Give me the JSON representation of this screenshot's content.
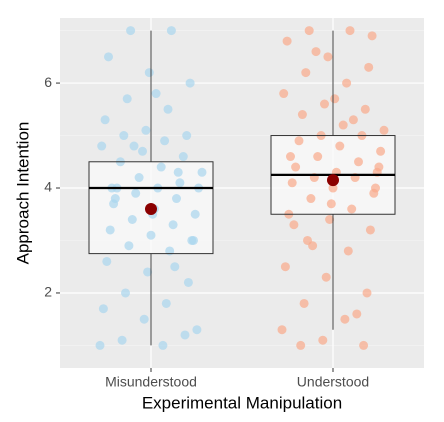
{
  "chart_data": {
    "type": "boxplot",
    "x_label": "Experimental Manipulation",
    "y_label": "Approach Intention",
    "categories": [
      "Misunderstood",
      "Understood"
    ],
    "boxes": [
      {
        "min": 1.0,
        "q1": 2.75,
        "median": 4.0,
        "q3": 4.5,
        "max": 7.0,
        "mean": 3.6
      },
      {
        "min": 1.3,
        "q1": 3.5,
        "median": 4.25,
        "q3": 5.0,
        "max": 7.0,
        "mean": 4.15
      }
    ],
    "point_colors": [
      "#a9d6ee",
      "#f9a98a"
    ],
    "mean_color": "#8b0000",
    "points": [
      [
        1.0,
        1.0,
        1.1,
        1.2,
        1.5,
        1.7,
        1.8,
        2.0,
        2.2,
        2.4,
        2.6,
        2.8,
        2.9,
        3.0,
        3.1,
        3.2,
        3.3,
        3.4,
        3.5,
        3.6,
        3.7,
        3.8,
        3.9,
        4.0,
        4.0,
        4.0,
        4.1,
        4.2,
        4.3,
        4.4,
        4.5,
        4.6,
        4.7,
        4.8,
        4.9,
        5.0,
        5.0,
        5.1,
        5.3,
        5.5,
        5.7,
        6.0,
        6.2,
        6.5,
        7.0,
        7.0,
        3.0,
        3.5,
        4.0,
        2.5,
        4.8,
        1.3,
        5.8,
        3.8,
        4.3
      ],
      [
        1.0,
        1.0,
        1.1,
        1.3,
        1.5,
        1.8,
        2.0,
        2.3,
        2.5,
        2.8,
        3.0,
        3.2,
        3.4,
        3.5,
        3.6,
        3.8,
        3.9,
        4.0,
        4.1,
        4.2,
        4.2,
        4.3,
        4.3,
        4.4,
        4.5,
        4.6,
        4.7,
        4.8,
        4.9,
        5.0,
        5.0,
        5.1,
        5.2,
        5.4,
        5.5,
        5.6,
        5.8,
        6.0,
        6.2,
        6.3,
        6.5,
        6.8,
        7.0,
        7.0,
        6.9,
        3.7,
        4.6,
        5.3,
        2.9,
        4.0,
        5.7,
        3.3,
        1.6,
        6.6,
        4.4
      ]
    ],
    "ylim": [
      0.57,
      7.24
    ],
    "yticks": [
      2,
      4,
      6
    ],
    "yticks_minor": [
      1,
      3,
      5,
      7
    ],
    "grid": true
  }
}
